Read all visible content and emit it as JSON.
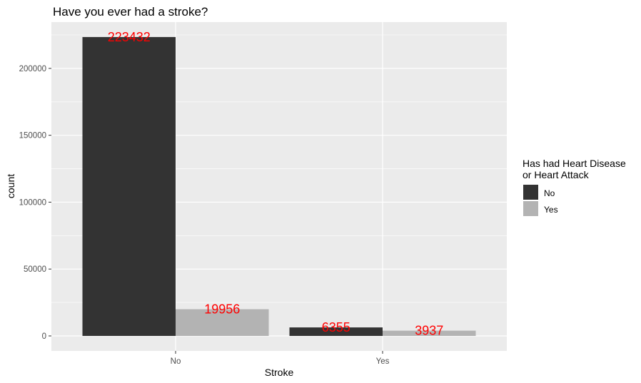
{
  "chart_data": {
    "type": "bar",
    "title": "Have you ever had a stroke?",
    "xlabel": "Stroke",
    "ylabel": "count",
    "categories": [
      "No",
      "Yes"
    ],
    "series": [
      {
        "name": "No",
        "values": [
          223432,
          6355
        ],
        "color": "#333333"
      },
      {
        "name": "Yes",
        "values": [
          19956,
          3937
        ],
        "color": "#b3b3b3"
      }
    ],
    "ylim": [
      -11200,
      234600
    ],
    "yticks": [
      0,
      50000,
      100000,
      150000,
      200000
    ],
    "ytick_labels": [
      "0",
      "50000",
      "100000",
      "150000",
      "200000"
    ],
    "legend": {
      "title_lines": [
        "Has had Heart Disease",
        "or Heart Attack"
      ],
      "placement": "right"
    },
    "data_label_color": "#ff0000",
    "panel_background": "#ebebeb",
    "grid": true
  }
}
